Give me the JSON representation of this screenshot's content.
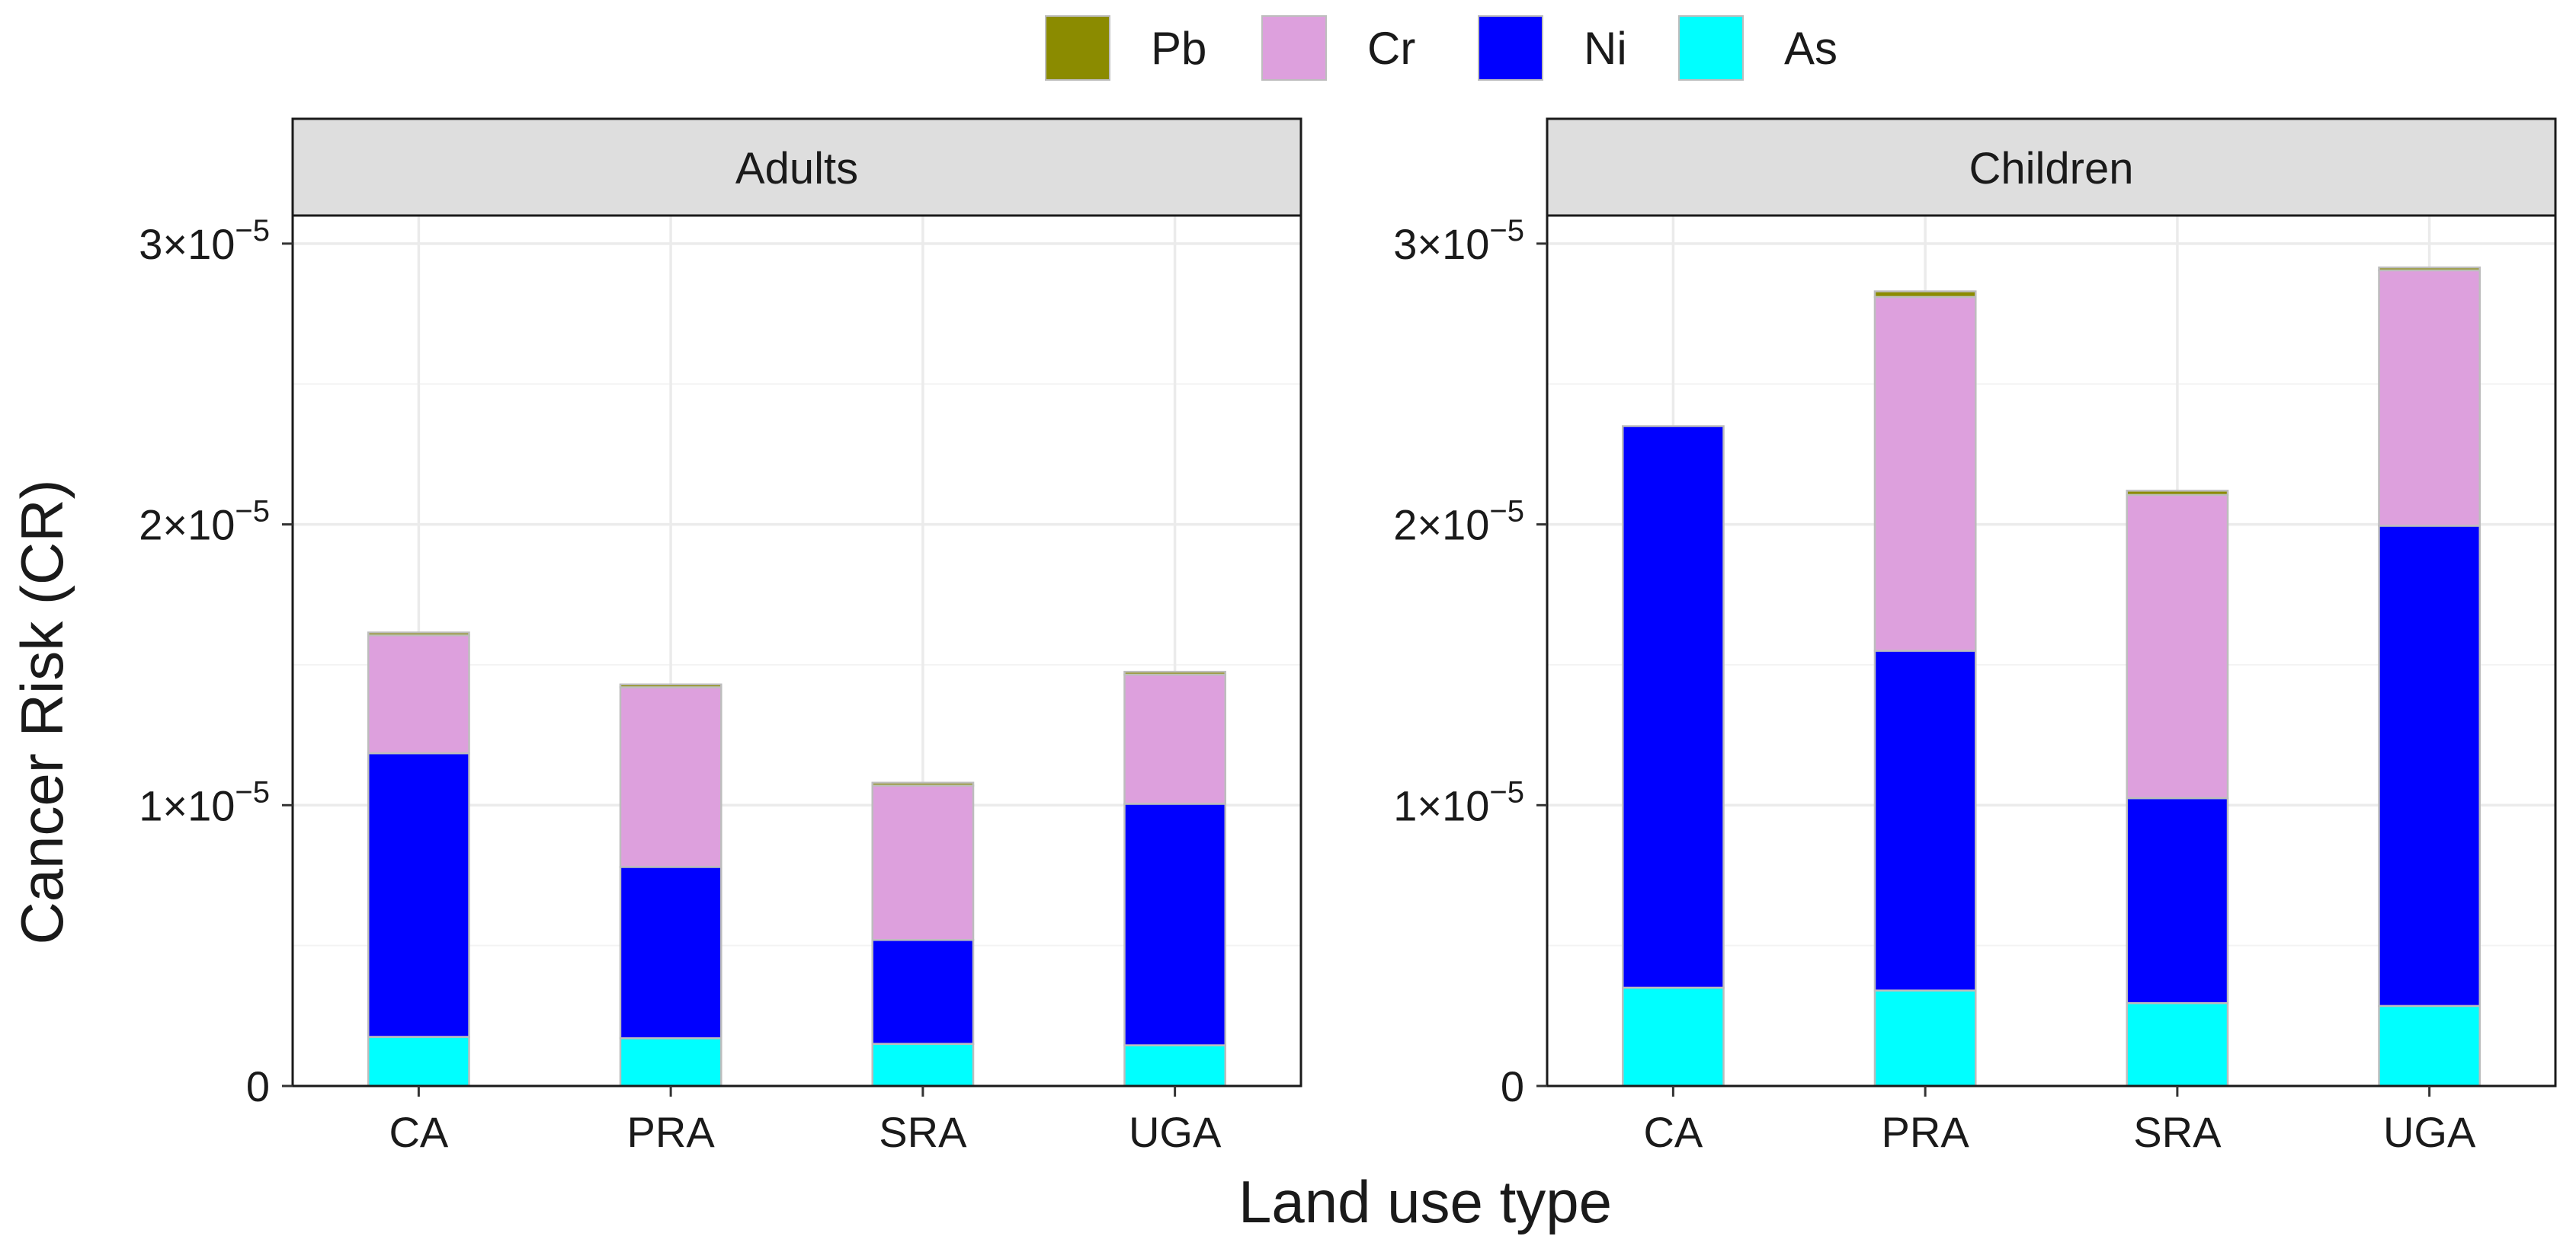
{
  "chart_data": {
    "type": "bar",
    "stacked": true,
    "xlabel": "Land use type",
    "ylabel": "Cancer Risk (CR)",
    "ylim": [
      0,
      3.1e-05
    ],
    "yticks": [
      {
        "value": 0,
        "mant": "0",
        "exp": ""
      },
      {
        "value": 1e-05,
        "mant": "1×10",
        "exp": "−5"
      },
      {
        "value": 2e-05,
        "mant": "2×10",
        "exp": "−5"
      },
      {
        "value": 3e-05,
        "mant": "3×10",
        "exp": "−5"
      }
    ],
    "grid": true,
    "legend": {
      "position": "top",
      "entries": [
        {
          "name": "Pb",
          "color": "#8b8b00"
        },
        {
          "name": "Cr",
          "color": "#dda0dd"
        },
        {
          "name": "Ni",
          "color": "#0000ff"
        },
        {
          "name": "As",
          "color": "#00ffff"
        }
      ]
    },
    "categories": [
      "CA",
      "PRA",
      "SRA",
      "UGA"
    ],
    "stack_order": [
      "As",
      "Ni",
      "Cr",
      "Pb"
    ],
    "panels": [
      {
        "title": "Adults",
        "series": [
          {
            "name": "As",
            "values": [
              1.75e-06,
              1.7e-06,
              1.5e-06,
              1.45e-06
            ]
          },
          {
            "name": "Ni",
            "values": [
              1.01e-05,
              6.1e-06,
              3.7e-06,
              8.6e-06
            ]
          },
          {
            "name": "Cr",
            "values": [
              4.2e-06,
              6.4e-06,
              5.5e-06,
              4.6e-06
            ]
          },
          {
            "name": "Pb",
            "values": [
              1e-07,
              1e-07,
              1e-07,
              1e-07
            ]
          }
        ]
      },
      {
        "title": "Children",
        "series": [
          {
            "name": "As",
            "values": [
              3.5e-06,
              3.4e-06,
              2.95e-06,
              2.85e-06
            ]
          },
          {
            "name": "Ni",
            "values": [
              2e-05,
              1.21e-05,
              7.3e-06,
              1.71e-05
            ]
          },
          {
            "name": "Cr",
            "values": [
              0,
              1.26e-05,
              1.08e-05,
              9.1e-06
            ]
          },
          {
            "name": "Pb",
            "values": [
              0,
              2e-07,
              1.5e-07,
              1e-07
            ]
          }
        ]
      }
    ]
  }
}
